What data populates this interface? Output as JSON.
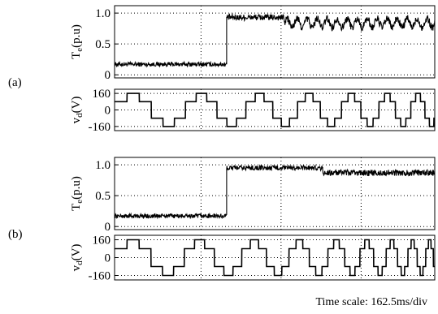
{
  "chart_data": [
    {
      "type": "line",
      "panel_label": "(a)",
      "ylabel": "Te(p.u)",
      "ylabel_main": "T",
      "ylabel_sub": "e",
      "ylabel_unit": "(p.u)",
      "ylim": [
        -0.05,
        1.12
      ],
      "yticks": [
        {
          "value": 1.0,
          "label": "1.0"
        },
        {
          "value": 0.5,
          "label": "0.5"
        },
        {
          "value": 0,
          "label": "0"
        }
      ],
      "grid": true,
      "step_at_div": 3.5,
      "series": [
        {
          "x_div": [
            0,
            3.5
          ],
          "level": 0.17,
          "band": 0.035
        },
        {
          "x_div": [
            3.5,
            5.3
          ],
          "level": 0.93,
          "band": 0.05
        },
        {
          "x_div": [
            5.3,
            10
          ],
          "level": 0.84,
          "band": 0.06,
          "ripple": 0.07
        }
      ]
    },
    {
      "type": "line",
      "panel_label": "",
      "ylabel": "vd(V)",
      "ylabel_main": "v",
      "ylabel_sub": "d",
      "ylabel_unit": "(V)",
      "ylim": [
        -200,
        200
      ],
      "yticks": [
        {
          "value": 160,
          "label": "160"
        },
        {
          "value": 0,
          "label": "0"
        },
        {
          "value": -160,
          "label": "-160"
        }
      ],
      "grid": true,
      "waveform": "stepped square wave, frequency increasing over time",
      "amplitude": 160,
      "period_div": [
        2.4,
        0.8
      ]
    },
    {
      "type": "line",
      "panel_label": "(b)",
      "ylabel": "Te(p.u)",
      "ylabel_main": "T",
      "ylabel_sub": "e",
      "ylabel_unit": "(p.u)",
      "ylim": [
        -0.05,
        1.12
      ],
      "yticks": [
        {
          "value": 1.0,
          "label": "1.0"
        },
        {
          "value": 0.5,
          "label": "0.5"
        },
        {
          "value": 0,
          "label": "0"
        }
      ],
      "grid": true,
      "step_at_div": 3.5,
      "series": [
        {
          "x_div": [
            0,
            3.5
          ],
          "level": 0.17,
          "band": 0.035
        },
        {
          "x_div": [
            3.5,
            6.5
          ],
          "level": 0.95,
          "band": 0.04
        },
        {
          "x_div": [
            6.5,
            10
          ],
          "level": 0.87,
          "band": 0.05
        }
      ]
    },
    {
      "type": "line",
      "panel_label": "",
      "ylabel": "vd(V)",
      "ylabel_main": "v",
      "ylabel_sub": "d",
      "ylabel_unit": "(V)",
      "ylim": [
        -200,
        200
      ],
      "yticks": [
        {
          "value": 160,
          "label": "160"
        },
        {
          "value": 0,
          "label": "0"
        },
        {
          "value": -160,
          "label": "-160"
        }
      ],
      "grid": true,
      "waveform": "stepped square wave, frequency increasing over time",
      "amplitude": 160,
      "period_div": [
        2.4,
        0.45
      ]
    }
  ],
  "footer": {
    "time_scale": "Time scale: 162.5ms/div"
  }
}
